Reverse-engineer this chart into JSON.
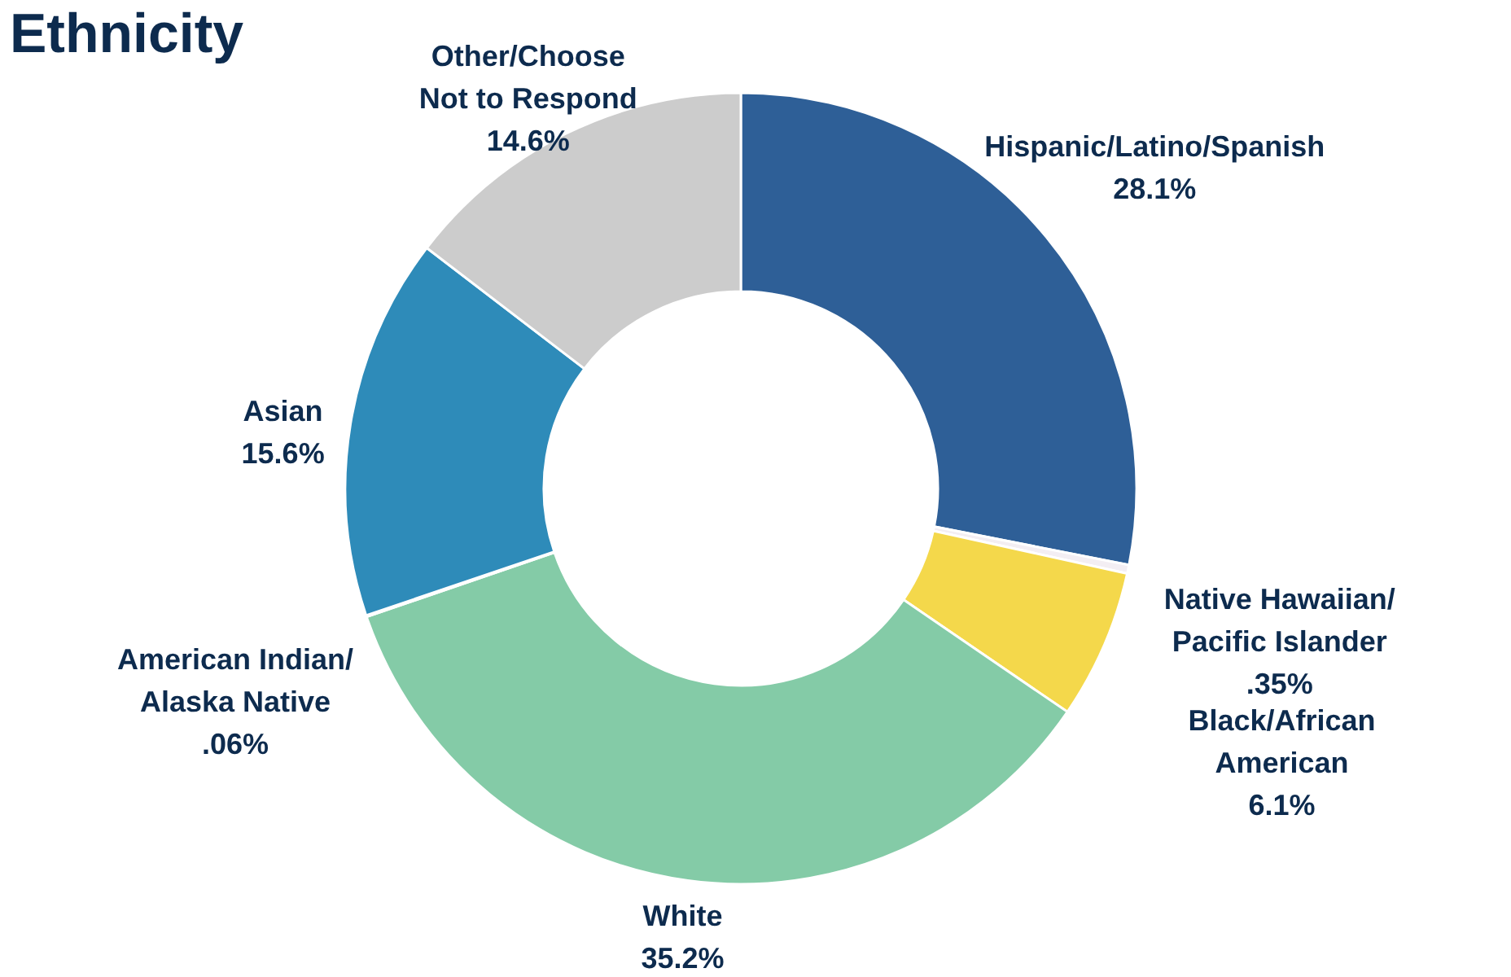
{
  "chart_data": {
    "type": "donut",
    "title": "Ethnicity",
    "categories": [
      "Hispanic/Latino/Spanish",
      "Native Hawaiian/Pacific Islander",
      "Black/African American",
      "White",
      "American Indian/Alaska Native",
      "Asian",
      "Other/Choose Not to Respond"
    ],
    "values": [
      28.1,
      0.35,
      6.1,
      35.2,
      0.06,
      15.6,
      14.6
    ],
    "value_labels": [
      "28.1%",
      ".35%",
      "6.1%",
      "35.2%",
      ".06%",
      "15.6%",
      "14.6%"
    ],
    "colors": [
      "#2e5f97",
      "#f3eef3",
      "#f4d84b",
      "#84cba7",
      "#f3eef3",
      "#2e8bb9",
      "#cccccc"
    ]
  }
}
